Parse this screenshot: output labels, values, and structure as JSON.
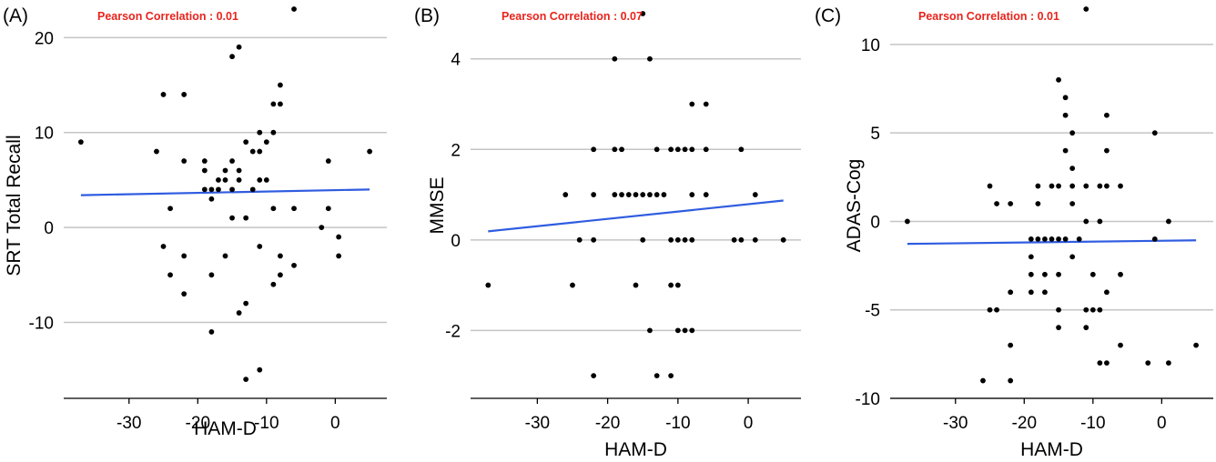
{
  "colors": {
    "fit_line": "#2f5ce0",
    "annotation": "#e8241c",
    "points": "#000000",
    "grid": "#c4c4c4"
  },
  "chart_data": [
    {
      "type": "scatter",
      "panel_label": "(A)",
      "annotation": "Pearson Correlation :  0.01",
      "xlabel": "HAM-D",
      "ylabel": "SRT Total Recall",
      "xlim": [
        -39.5,
        7.5
      ],
      "ylim": [
        -18,
        23
      ],
      "xticks": [
        -30,
        -20,
        -10,
        0
      ],
      "yticks": [
        -10,
        0,
        10,
        20
      ],
      "grid": "horizontal",
      "fit_line": {
        "x": [
          -37,
          5
        ],
        "y": [
          3.4,
          4.0
        ]
      },
      "points": [
        [
          -37,
          9
        ],
        [
          -26,
          8
        ],
        [
          -25,
          14
        ],
        [
          -25,
          -2
        ],
        [
          -24,
          2
        ],
        [
          -24,
          -5
        ],
        [
          -22,
          14
        ],
        [
          -22,
          7
        ],
        [
          -22,
          -3
        ],
        [
          -22,
          -7
        ],
        [
          -19,
          7
        ],
        [
          -19,
          6
        ],
        [
          -19,
          4
        ],
        [
          -18,
          4
        ],
        [
          -18,
          3
        ],
        [
          -18,
          -5
        ],
        [
          -18,
          -11
        ],
        [
          -17,
          5
        ],
        [
          -17,
          4
        ],
        [
          -16,
          6
        ],
        [
          -16,
          5
        ],
        [
          -16,
          -3
        ],
        [
          -15,
          7
        ],
        [
          -15,
          4
        ],
        [
          -15,
          18
        ],
        [
          -15,
          1
        ],
        [
          -14,
          19
        ],
        [
          -14,
          6
        ],
        [
          -14,
          5
        ],
        [
          -14,
          -9
        ],
        [
          -13,
          9
        ],
        [
          -13,
          1
        ],
        [
          -13,
          -8
        ],
        [
          -13,
          -16
        ],
        [
          -12,
          8
        ],
        [
          -12,
          4
        ],
        [
          -11,
          10
        ],
        [
          -11,
          8
        ],
        [
          -11,
          5
        ],
        [
          -11,
          -2
        ],
        [
          -11,
          -15
        ],
        [
          -10,
          9
        ],
        [
          -10,
          5
        ],
        [
          -9,
          10
        ],
        [
          -9,
          2
        ],
        [
          -9,
          -6
        ],
        [
          -9,
          13
        ],
        [
          -8,
          15
        ],
        [
          -8,
          13
        ],
        [
          -8,
          -3
        ],
        [
          -8,
          -5
        ],
        [
          -6,
          23
        ],
        [
          -6,
          2
        ],
        [
          -6,
          -4
        ],
        [
          -2,
          0
        ],
        [
          -1,
          7
        ],
        [
          -1,
          2
        ],
        [
          0.5,
          -1
        ],
        [
          0.5,
          -3
        ],
        [
          5,
          8
        ]
      ]
    },
    {
      "type": "scatter",
      "panel_label": "(B)",
      "annotation": "Pearson Correlation :  0.07",
      "xlabel": "HAM-D",
      "ylabel": "MMSE",
      "xlim": [
        -39.5,
        7.5
      ],
      "ylim": [
        -3.5,
        5.1
      ],
      "xticks": [
        -30,
        -20,
        -10,
        0
      ],
      "yticks": [
        -2,
        0,
        2,
        4
      ],
      "grid": "horizontal",
      "fit_line": {
        "x": [
          -37,
          5
        ],
        "y": [
          0.19,
          0.87
        ]
      },
      "points": [
        [
          -37,
          -1
        ],
        [
          -26,
          1
        ],
        [
          -25,
          -1
        ],
        [
          -24,
          0
        ],
        [
          -22,
          2
        ],
        [
          -22,
          1
        ],
        [
          -22,
          0
        ],
        [
          -22,
          -3
        ],
        [
          -19,
          4
        ],
        [
          -19,
          2
        ],
        [
          -19,
          1
        ],
        [
          -18,
          2
        ],
        [
          -18,
          1
        ],
        [
          -17,
          1
        ],
        [
          -16,
          1
        ],
        [
          -16,
          -1
        ],
        [
          -15,
          1
        ],
        [
          -15,
          5
        ],
        [
          -15,
          0
        ],
        [
          -14,
          4
        ],
        [
          -14,
          1
        ],
        [
          -14,
          -2
        ],
        [
          -13,
          2
        ],
        [
          -13,
          1
        ],
        [
          -13,
          -3
        ],
        [
          -12,
          1
        ],
        [
          -11,
          2
        ],
        [
          -11,
          0
        ],
        [
          -11,
          -1
        ],
        [
          -11,
          -3
        ],
        [
          -10,
          2
        ],
        [
          -10,
          0
        ],
        [
          -10,
          -1
        ],
        [
          -10,
          -2
        ],
        [
          -9,
          2
        ],
        [
          -9,
          0
        ],
        [
          -9,
          -2
        ],
        [
          -8,
          3
        ],
        [
          -8,
          2
        ],
        [
          -8,
          1
        ],
        [
          -8,
          0
        ],
        [
          -8,
          -2
        ],
        [
          -6,
          3
        ],
        [
          -6,
          2
        ],
        [
          -6,
          1
        ],
        [
          -1,
          2
        ],
        [
          -2,
          0
        ],
        [
          -1,
          0
        ],
        [
          1,
          1
        ],
        [
          1,
          0
        ],
        [
          5,
          0
        ]
      ]
    },
    {
      "type": "scatter",
      "panel_label": "(C)",
      "annotation": "Pearson Correlation :  0.01",
      "xlabel": "HAM-D",
      "ylabel": "ADAS-Cog",
      "xlim": [
        -39.5,
        7.5
      ],
      "ylim": [
        -10,
        12
      ],
      "xticks": [
        -30,
        -20,
        -10,
        0
      ],
      "yticks": [
        -10,
        -5,
        0,
        5,
        10
      ],
      "grid": "horizontal",
      "fit_line": {
        "x": [
          -37,
          5
        ],
        "y": [
          -1.27,
          -1.07
        ]
      },
      "points": [
        [
          -37,
          0
        ],
        [
          -26,
          -9
        ],
        [
          -25,
          2
        ],
        [
          -25,
          -5
        ],
        [
          -24,
          1
        ],
        [
          -24,
          -5
        ],
        [
          -22,
          1
        ],
        [
          -22,
          -4
        ],
        [
          -22,
          -7
        ],
        [
          -22,
          -9
        ],
        [
          -19,
          -1
        ],
        [
          -19,
          -2
        ],
        [
          -19,
          -3
        ],
        [
          -19,
          -4
        ],
        [
          -18,
          2
        ],
        [
          -18,
          1
        ],
        [
          -18,
          -1
        ],
        [
          -17,
          -1
        ],
        [
          -17,
          -3
        ],
        [
          -17,
          -4
        ],
        [
          -16,
          2
        ],
        [
          -16,
          -1
        ],
        [
          -15,
          8
        ],
        [
          -15,
          2
        ],
        [
          -15,
          -1
        ],
        [
          -15,
          -3
        ],
        [
          -15,
          -5
        ],
        [
          -15,
          -6
        ],
        [
          -14,
          7
        ],
        [
          -14,
          6
        ],
        [
          -14,
          4
        ],
        [
          -14,
          -1
        ],
        [
          -13,
          5
        ],
        [
          -13,
          3
        ],
        [
          -13,
          2
        ],
        [
          -13,
          1
        ],
        [
          -13,
          -2
        ],
        [
          -12,
          -1
        ],
        [
          -11,
          12
        ],
        [
          -11,
          2
        ],
        [
          -11,
          0
        ],
        [
          -11,
          -5
        ],
        [
          -11,
          -6
        ],
        [
          -10,
          -3
        ],
        [
          -10,
          -5
        ],
        [
          -9,
          2
        ],
        [
          -9,
          0
        ],
        [
          -9,
          -5
        ],
        [
          -9,
          -8
        ],
        [
          -8,
          6
        ],
        [
          -8,
          4
        ],
        [
          -8,
          2
        ],
        [
          -8,
          -4
        ],
        [
          -8,
          -8
        ],
        [
          -6,
          2
        ],
        [
          -6,
          -3
        ],
        [
          -6,
          -7
        ],
        [
          -1,
          5
        ],
        [
          -1,
          -1
        ],
        [
          -2,
          -8
        ],
        [
          1,
          0
        ],
        [
          1,
          -8
        ],
        [
          5,
          -7
        ]
      ]
    }
  ]
}
